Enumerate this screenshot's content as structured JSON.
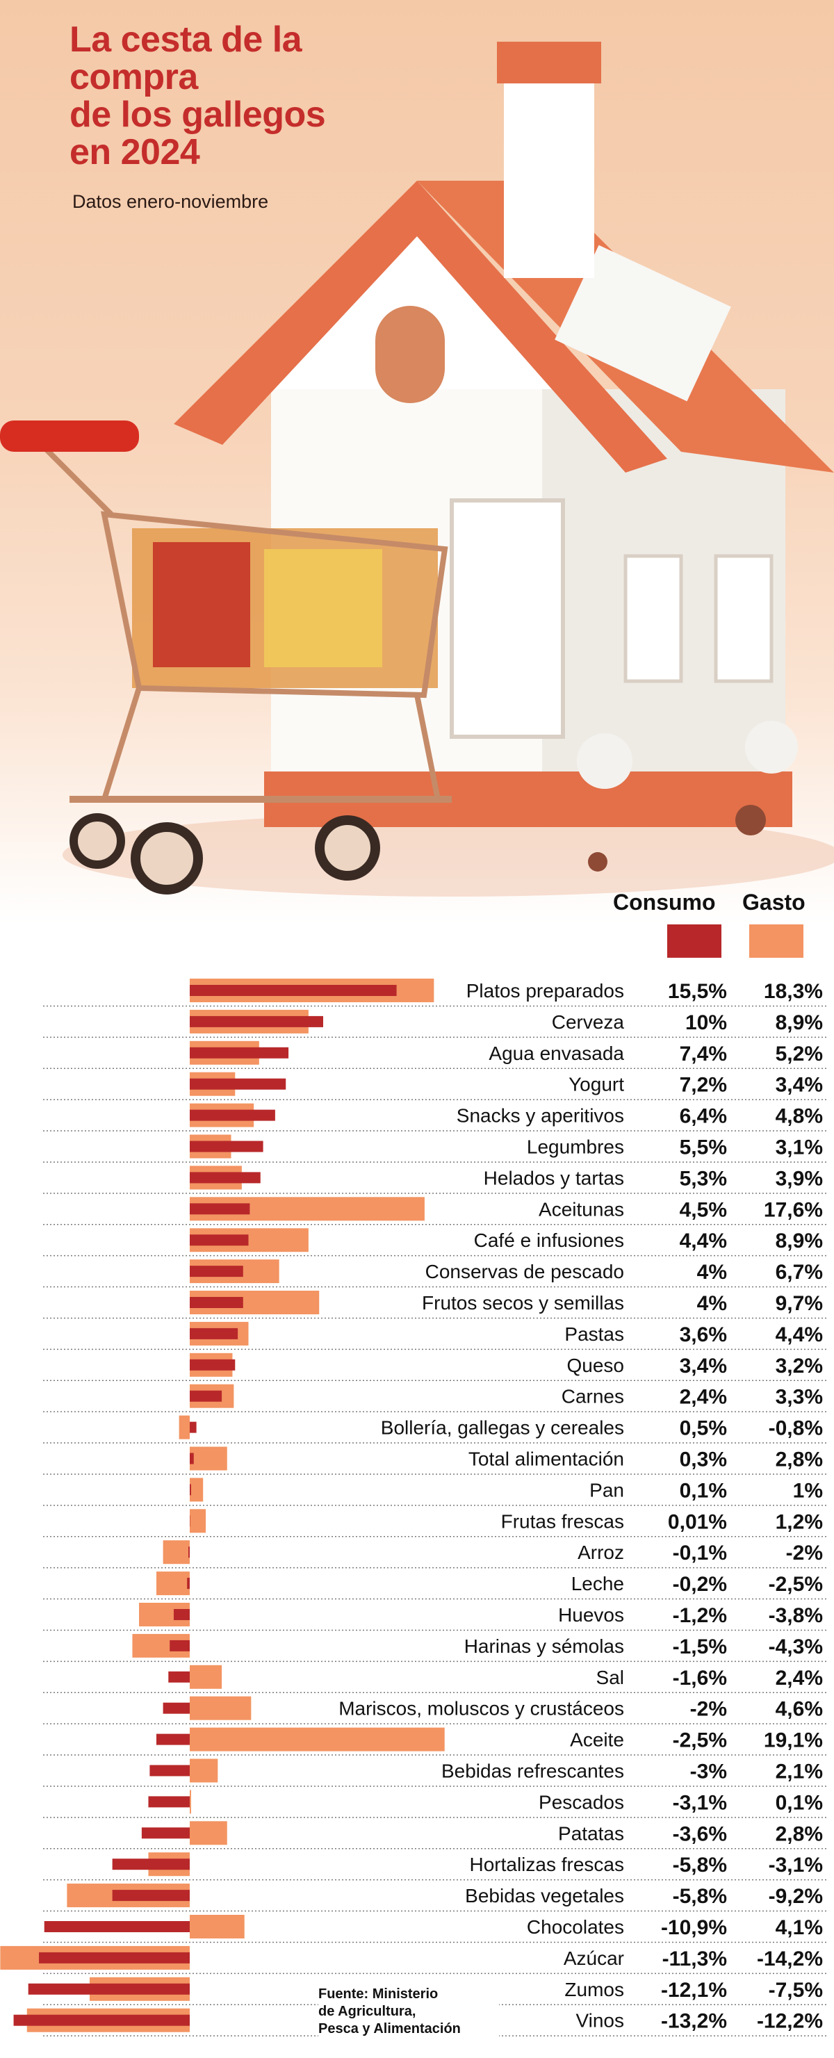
{
  "title_lines": [
    "La cesta de la",
    "compra",
    "de los gallegos",
    "en 2024"
  ],
  "subtitle": "Datos enero-noviembre",
  "legend": {
    "consumo": "Consumo",
    "gasto": "Gasto"
  },
  "colors": {
    "consumo": "#b8282a",
    "gasto": "#f39462",
    "title": "#c42d2b"
  },
  "source_lines": [
    "Fuente: Ministerio",
    "de Agricultura,",
    "Pesca y Alimentación"
  ],
  "chart_data": {
    "type": "bar",
    "orientation": "horizontal",
    "series": [
      {
        "name": "Consumo",
        "values": [
          15.5,
          10,
          7.4,
          7.2,
          6.4,
          5.5,
          5.3,
          4.5,
          4.4,
          4,
          4,
          3.6,
          3.4,
          2.4,
          0.5,
          0.3,
          0.1,
          0.01,
          -0.1,
          -0.2,
          -1.2,
          -1.5,
          -1.6,
          -2,
          -2.5,
          -3,
          -3.1,
          -3.6,
          -5.8,
          -5.8,
          -10.9,
          -11.3,
          -12.1,
          -13.2
        ]
      },
      {
        "name": "Gasto",
        "values": [
          18.3,
          8.9,
          5.2,
          3.4,
          4.8,
          3.1,
          3.9,
          17.6,
          8.9,
          6.7,
          9.7,
          4.4,
          3.2,
          3.3,
          -0.8,
          2.8,
          1,
          1.2,
          -2,
          -2.5,
          -3.8,
          -4.3,
          2.4,
          4.6,
          19.1,
          2.1,
          0.1,
          2.8,
          -3.1,
          -9.2,
          4.1,
          -14.2,
          -7.5,
          -12.2
        ]
      }
    ],
    "categories": [
      "Platos preparados",
      "Cerveza",
      "Agua envasada",
      "Yogurt",
      "Snacks y aperitivos",
      "Legumbres",
      "Helados y tartas",
      "Aceitunas",
      "Café e infusiones",
      "Conservas de pescado",
      "Frutos secos y semillas",
      "Pastas",
      "Queso",
      "Carnes",
      "Bollería, gallegas y cereales",
      "Total alimentación",
      "Pan",
      "Frutas frescas",
      "Arroz",
      "Leche",
      "Huevos",
      "Harinas y sémolas",
      "Sal",
      "Mariscos, moluscos y crustáceos",
      "Aceite",
      "Bebidas refrescantes",
      "Pescados",
      "Patatas",
      "Hortalizas frescas",
      "Bebidas vegetales",
      "Chocolates",
      "Azúcar",
      "Zumos",
      "Vinos"
    ],
    "labels_consumo": [
      "15,5%",
      "10%",
      "7,4%",
      "7,2%",
      "6,4%",
      "5,5%",
      "5,3%",
      "4,5%",
      "4,4%",
      "4%",
      "4%",
      "3,6%",
      "3,4%",
      "2,4%",
      "0,5%",
      "0,3%",
      "0,1%",
      "0,01%",
      "-0,1%",
      "-0,2%",
      "-1,2%",
      "-1,5%",
      "-1,6%",
      "-2%",
      "-2,5%",
      "-3%",
      "-3,1%",
      "-3,6%",
      "-5,8%",
      "-5,8%",
      "-10,9%",
      "-11,3%",
      "-12,1%",
      "-13,2%"
    ],
    "labels_gasto": [
      "18,3%",
      "8,9%",
      "5,2%",
      "3,4%",
      "4,8%",
      "3,1%",
      "3,9%",
      "17,6%",
      "8,9%",
      "6,7%",
      "9,7%",
      "4,4%",
      "3,2%",
      "3,3%",
      "-0,8%",
      "2,8%",
      "1%",
      "1,2%",
      "-2%",
      "-2,5%",
      "-3,8%",
      "-4,3%",
      "2,4%",
      "4,6%",
      "19,1%",
      "2,1%",
      "0,1%",
      "2,8%",
      "-3,1%",
      "-9,2%",
      "4,1%",
      "-14,2%",
      "-7,5%",
      "-12,2%"
    ],
    "grid": false,
    "legend_position": "top-right"
  }
}
